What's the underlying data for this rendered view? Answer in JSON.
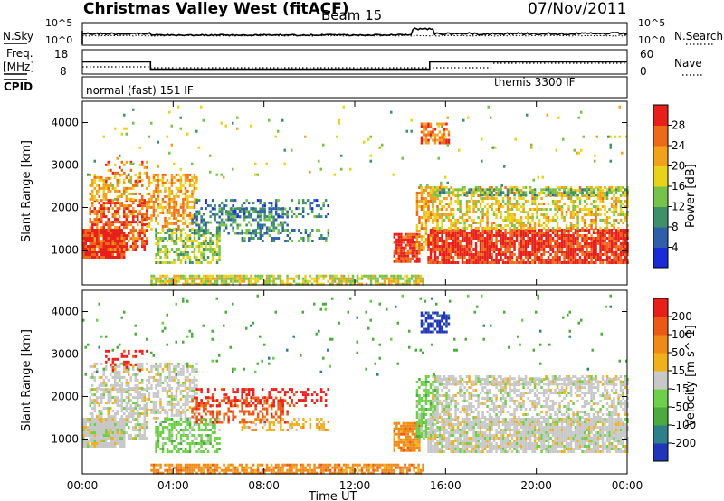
{
  "header": {
    "title": "Christmas Valley West (fitACF)",
    "beam": "Beam 15",
    "date": "07/Nov/2011"
  },
  "top_panels": {
    "nsky_label": "N.Sky",
    "nsearch_label": "N.Search",
    "nsky_ticks": [
      "10^5",
      "10^0"
    ],
    "nsearch_ticks": [
      "10^5",
      "10^0"
    ],
    "freq_label_line1": "Freq.",
    "freq_label_line2": "[MHz]",
    "freq_ticks": [
      "18",
      "8"
    ],
    "nave_label": "Nave",
    "nave_ticks": [
      "60",
      "0"
    ],
    "cpid_label": "CPID",
    "cpid_modes": [
      {
        "name": "normal (fast) 151 IF",
        "start_hour": 0
      },
      {
        "name": "themis 3300 IF",
        "start_hour": 18
      }
    ],
    "freq_steps_mhz": [
      {
        "from": 0,
        "to": 3.0,
        "value": 13
      },
      {
        "from": 3.0,
        "to": 15.3,
        "value": 10
      },
      {
        "from": 15.3,
        "to": 24,
        "value": 13
      }
    ]
  },
  "chart_data": [
    {
      "type": "heatmap",
      "name": "power",
      "ylabel": "Slant Range [km]",
      "ylim": [
        180,
        4500
      ],
      "yticks": [
        1000,
        2000,
        3000,
        4000
      ],
      "xlim": [
        0,
        24
      ],
      "xticks": [
        "00:00",
        "04:00",
        "08:00",
        "12:00",
        "16:00",
        "20:00",
        "00:00"
      ],
      "colorbar": {
        "label": "Power [dB]",
        "ticks": [
          "4",
          "8",
          "12",
          "16",
          "20",
          "24",
          "28"
        ],
        "colors": [
          "#1a2bd8",
          "#2f5fa8",
          "#3f8f6a",
          "#77c24b",
          "#e8d21c",
          "#f2a21a",
          "#ee6a1b",
          "#e8201c"
        ]
      }
    },
    {
      "type": "heatmap",
      "name": "velocity",
      "ylabel": "Slant Range [km]",
      "ylim": [
        180,
        4500
      ],
      "yticks": [
        1000,
        2000,
        3000,
        4000
      ],
      "xlim": [
        0,
        24
      ],
      "xticks": [
        "00:00",
        "04:00",
        "08:00",
        "12:00",
        "16:00",
        "20:00",
        "00:00"
      ],
      "xlabel": "Time UT",
      "colorbar": {
        "label": "Velocity [m s^-1]",
        "ticks": [
          "200",
          "100",
          "50",
          "15",
          "-15",
          "-50",
          "-100",
          "-200"
        ],
        "colors": [
          "#2035b8",
          "#2f7f8a",
          "#4caa3e",
          "#6ed04a",
          "#c8c8c8",
          "#f0b21c",
          "#ef8a18",
          "#ea5a16",
          "#e8201c"
        ]
      }
    }
  ]
}
